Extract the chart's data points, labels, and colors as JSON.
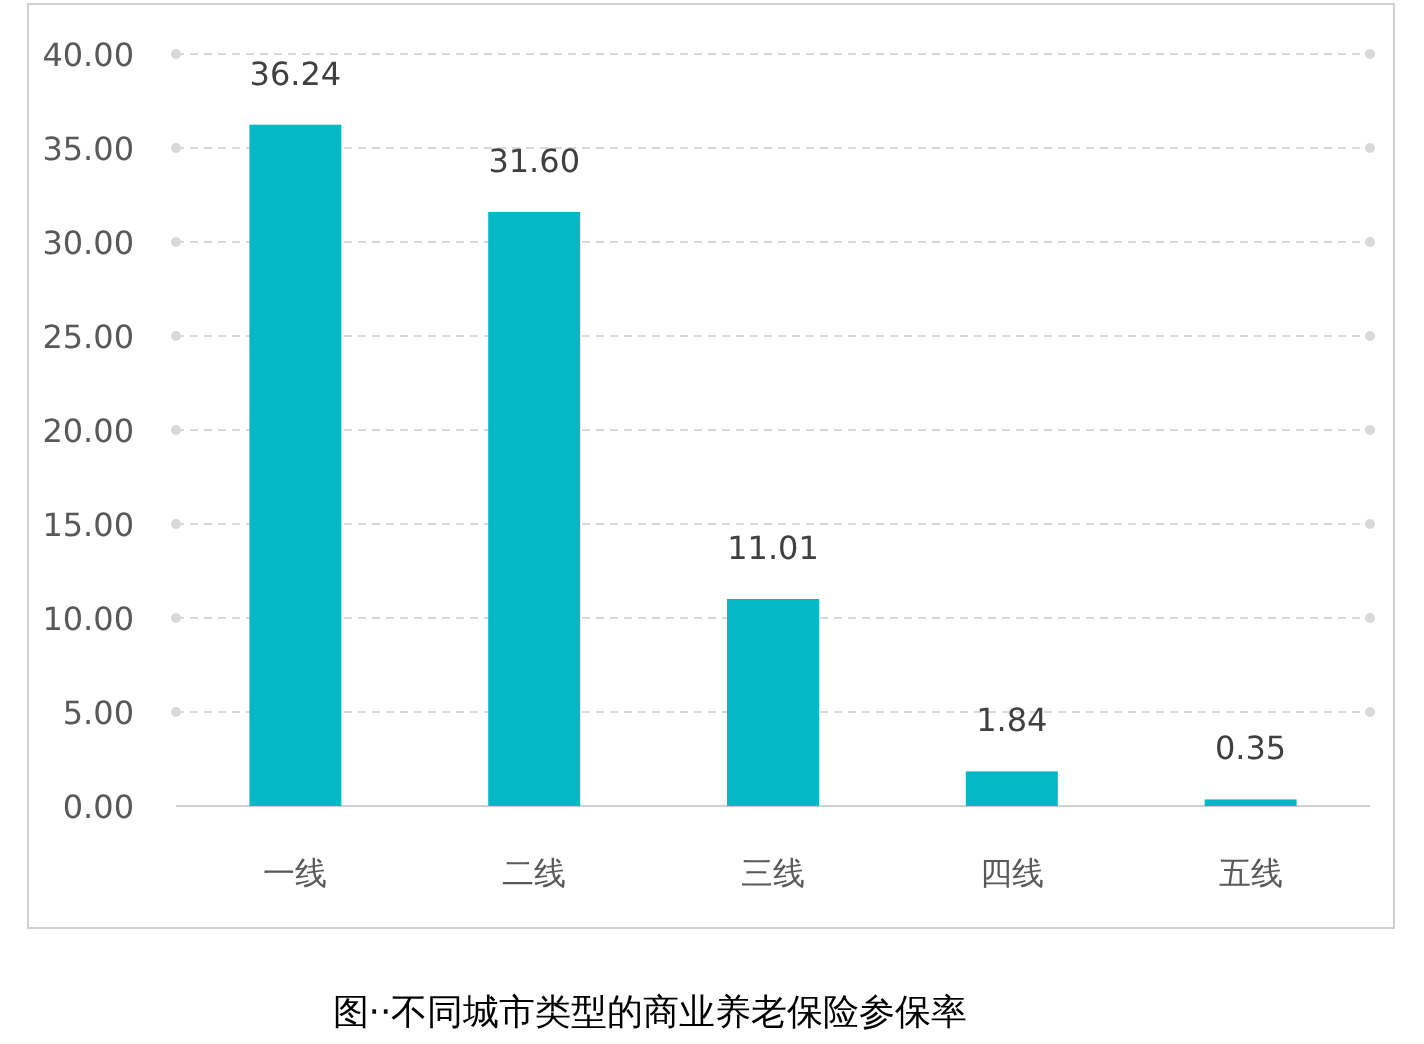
{
  "chart_data": {
    "type": "bar",
    "categories": [
      "一线",
      "二线",
      "三线",
      "四线",
      "五线"
    ],
    "values": [
      36.24,
      31.6,
      11.01,
      1.84,
      0.35
    ],
    "value_labels": [
      "36.24",
      "31.60",
      "11.01",
      "1.84",
      "0.35"
    ],
    "color": "#05b8c6",
    "ylim": [
      0,
      40
    ],
    "yticks": [
      {
        "value": 0,
        "label": "0.00"
      },
      {
        "value": 5,
        "label": "5.00"
      },
      {
        "value": 10,
        "label": "10.00"
      },
      {
        "value": 15,
        "label": "15.00"
      },
      {
        "value": 20,
        "label": "20.00"
      },
      {
        "value": 25,
        "label": "25.00"
      },
      {
        "value": 30,
        "label": "30.00"
      },
      {
        "value": 35,
        "label": "35.00"
      },
      {
        "value": 40,
        "label": "40.00"
      }
    ],
    "grid": "y",
    "annotations": [
      "图··不同城市类型的商业养老保险参保率"
    ]
  }
}
